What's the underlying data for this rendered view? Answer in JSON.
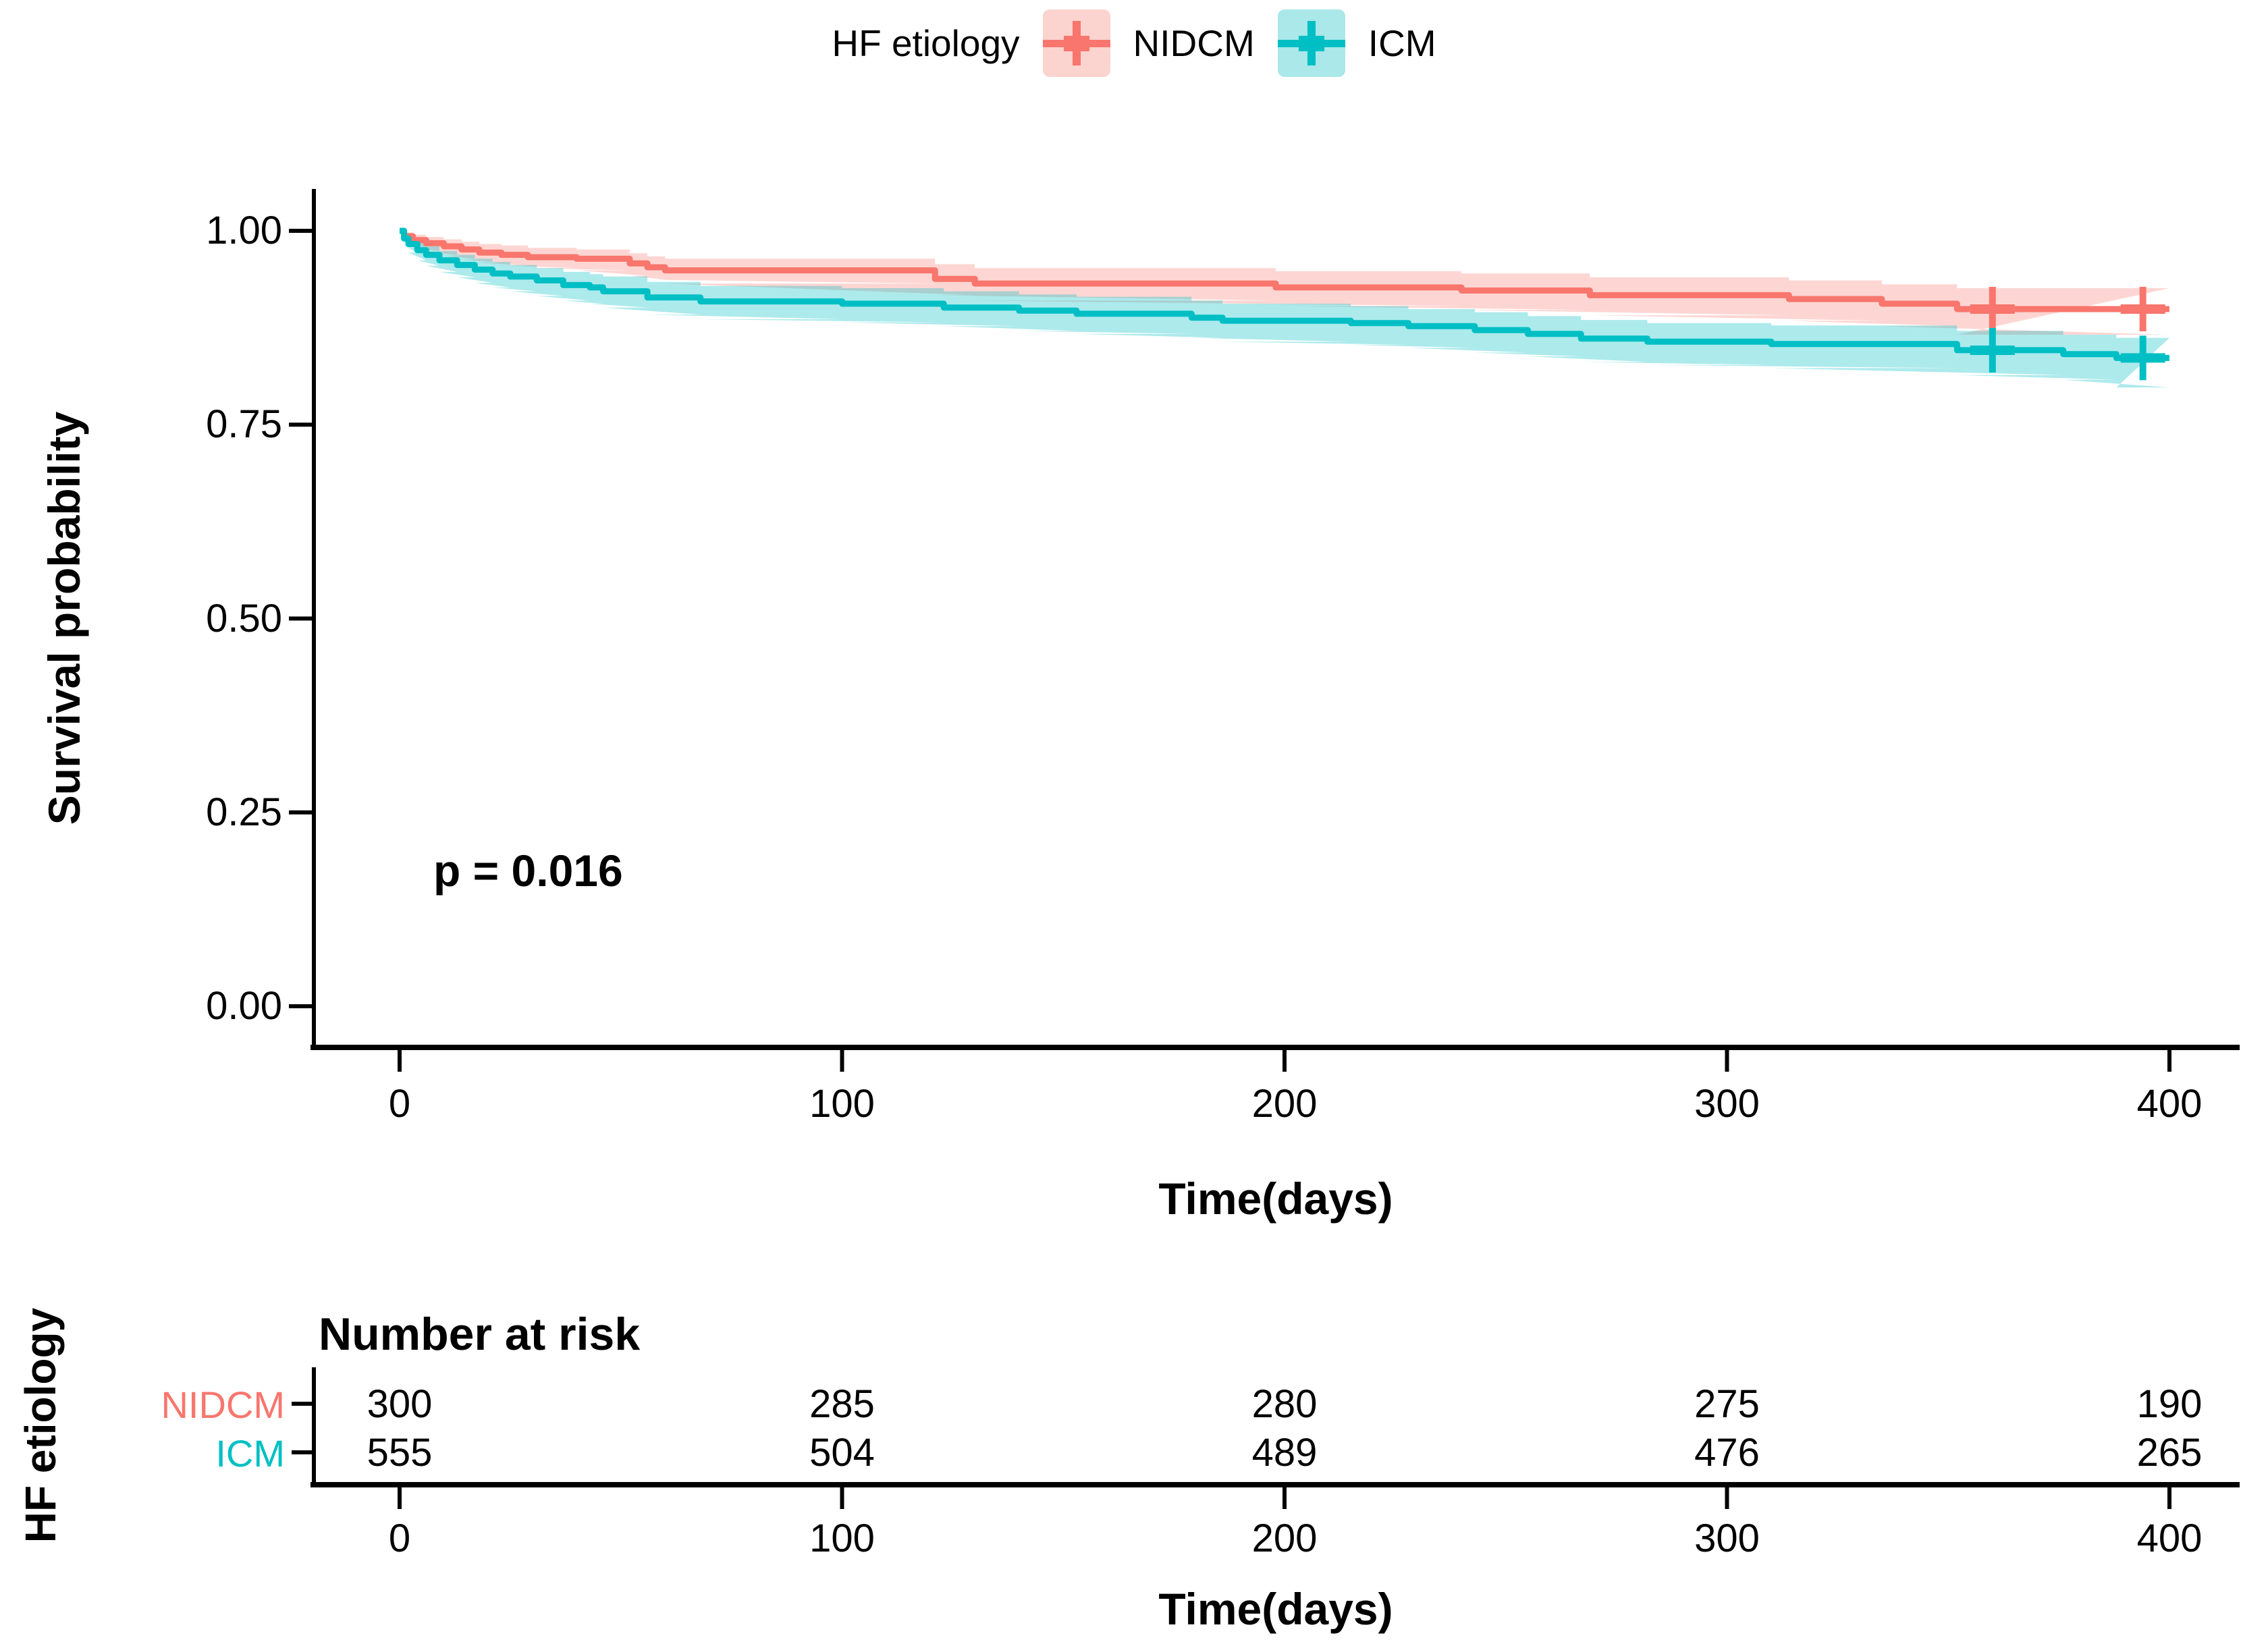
{
  "legend": {
    "title": "HF etiology",
    "items": [
      {
        "label": "NIDCM",
        "color": "#F8766D",
        "fill": "#FBD3CF"
      },
      {
        "label": "ICM",
        "color": "#00BFC4",
        "fill": "#AAE8EA"
      }
    ]
  },
  "chart_data": {
    "type": "line",
    "subtype": "kaplan-meier-step",
    "xlabel": "Time(days)",
    "ylabel": "Survival probability",
    "xlim": [
      0,
      400
    ],
    "ylim": [
      0,
      1
    ],
    "xticks": [
      0,
      100,
      200,
      300,
      400
    ],
    "yticks": [
      "0.00",
      "0.25",
      "0.50",
      "0.75",
      "1.00"
    ],
    "ytick_values": [
      0,
      0.25,
      0.5,
      0.75,
      1.0
    ],
    "grid": "off",
    "legend_position": "top",
    "pvalue_text": "p = 0.016",
    "series": [
      {
        "name": "NIDCM",
        "color": "#F8766D",
        "band_rgba": "rgba(248,118,109,0.30)",
        "steps": [
          [
            0,
            1.0
          ],
          [
            1,
            0.993
          ],
          [
            3,
            0.988
          ],
          [
            6,
            0.984
          ],
          [
            10,
            0.98
          ],
          [
            14,
            0.976
          ],
          [
            18,
            0.972
          ],
          [
            23,
            0.969
          ],
          [
            29,
            0.966
          ],
          [
            40,
            0.964
          ],
          [
            52,
            0.958
          ],
          [
            56,
            0.953
          ],
          [
            60,
            0.949
          ],
          [
            121,
            0.938
          ],
          [
            130,
            0.932
          ],
          [
            198,
            0.927
          ],
          [
            240,
            0.923
          ],
          [
            269,
            0.917
          ],
          [
            314,
            0.912
          ],
          [
            335,
            0.906
          ],
          [
            352,
            0.899
          ],
          [
            400,
            0.899
          ]
        ],
        "band": [
          [
            0,
            1.0,
            1.0
          ],
          [
            1,
            0.985,
            0.998
          ],
          [
            3,
            0.978,
            0.995
          ],
          [
            6,
            0.973,
            0.992
          ],
          [
            10,
            0.968,
            0.989
          ],
          [
            14,
            0.963,
            0.986
          ],
          [
            18,
            0.959,
            0.983
          ],
          [
            23,
            0.955,
            0.981
          ],
          [
            29,
            0.952,
            0.978
          ],
          [
            40,
            0.949,
            0.976
          ],
          [
            52,
            0.942,
            0.971
          ],
          [
            56,
            0.937,
            0.967
          ],
          [
            60,
            0.932,
            0.964
          ],
          [
            121,
            0.917,
            0.957
          ],
          [
            130,
            0.91,
            0.952
          ],
          [
            198,
            0.903,
            0.948
          ],
          [
            240,
            0.898,
            0.945
          ],
          [
            269,
            0.891,
            0.94
          ],
          [
            314,
            0.884,
            0.936
          ],
          [
            335,
            0.877,
            0.931
          ],
          [
            352,
            0.866,
            0.926
          ],
          [
            400,
            0.866,
            0.926
          ]
        ],
        "censors": [
          [
            360,
            0.899
          ],
          [
            394,
            0.899
          ]
        ]
      },
      {
        "name": "ICM",
        "color": "#00BFC4",
        "band_rgba": "rgba(0,191,196,0.32)",
        "steps": [
          [
            0,
            1.0
          ],
          [
            1,
            0.99
          ],
          [
            2,
            0.983
          ],
          [
            4,
            0.975
          ],
          [
            6,
            0.969
          ],
          [
            9,
            0.962
          ],
          [
            13,
            0.956
          ],
          [
            17,
            0.95
          ],
          [
            21,
            0.945
          ],
          [
            25,
            0.941
          ],
          [
            31,
            0.936
          ],
          [
            37,
            0.93
          ],
          [
            43,
            0.927
          ],
          [
            46,
            0.922
          ],
          [
            56,
            0.914
          ],
          [
            68,
            0.909
          ],
          [
            100,
            0.906
          ],
          [
            123,
            0.901
          ],
          [
            140,
            0.897
          ],
          [
            153,
            0.893
          ],
          [
            179,
            0.888
          ],
          [
            186,
            0.884
          ],
          [
            215,
            0.881
          ],
          [
            228,
            0.877
          ],
          [
            243,
            0.872
          ],
          [
            255,
            0.867
          ],
          [
            267,
            0.861
          ],
          [
            282,
            0.857
          ],
          [
            310,
            0.854
          ],
          [
            352,
            0.846
          ],
          [
            376,
            0.841
          ],
          [
            388,
            0.836
          ],
          [
            400,
            0.836
          ]
        ],
        "band": [
          [
            0,
            1.0,
            1.0
          ],
          [
            1,
            0.981,
            0.996
          ],
          [
            2,
            0.972,
            0.991
          ],
          [
            4,
            0.962,
            0.985
          ],
          [
            6,
            0.955,
            0.98
          ],
          [
            9,
            0.947,
            0.974
          ],
          [
            13,
            0.94,
            0.969
          ],
          [
            17,
            0.933,
            0.964
          ],
          [
            21,
            0.927,
            0.96
          ],
          [
            25,
            0.922,
            0.956
          ],
          [
            31,
            0.916,
            0.952
          ],
          [
            37,
            0.91,
            0.947
          ],
          [
            43,
            0.906,
            0.944
          ],
          [
            46,
            0.901,
            0.941
          ],
          [
            56,
            0.892,
            0.934
          ],
          [
            68,
            0.886,
            0.929
          ],
          [
            100,
            0.882,
            0.926
          ],
          [
            123,
            0.877,
            0.922
          ],
          [
            140,
            0.871,
            0.918
          ],
          [
            153,
            0.867,
            0.915
          ],
          [
            179,
            0.862,
            0.91
          ],
          [
            186,
            0.857,
            0.906
          ],
          [
            215,
            0.853,
            0.903
          ],
          [
            228,
            0.849,
            0.899
          ],
          [
            243,
            0.843,
            0.895
          ],
          [
            255,
            0.838,
            0.89
          ],
          [
            267,
            0.831,
            0.885
          ],
          [
            282,
            0.827,
            0.881
          ],
          [
            310,
            0.823,
            0.878
          ],
          [
            352,
            0.814,
            0.871
          ],
          [
            376,
            0.808,
            0.866
          ],
          [
            388,
            0.798,
            0.862
          ],
          [
            400,
            0.798,
            0.862
          ]
        ],
        "censors": [
          [
            360,
            0.846
          ],
          [
            394,
            0.836
          ]
        ]
      }
    ],
    "risk_table": {
      "title": "Number at risk",
      "ylabel": "HF etiology",
      "xlabel": "Time(days)",
      "times": [
        0,
        100,
        200,
        300,
        400
      ],
      "rows": [
        {
          "label": "NIDCM",
          "color": "#F8766D",
          "values": [
            "300",
            "285",
            "280",
            "275",
            "190"
          ]
        },
        {
          "label": "ICM",
          "color": "#00BFC4",
          "values": [
            "555",
            "504",
            "489",
            "476",
            "265"
          ]
        }
      ]
    }
  }
}
